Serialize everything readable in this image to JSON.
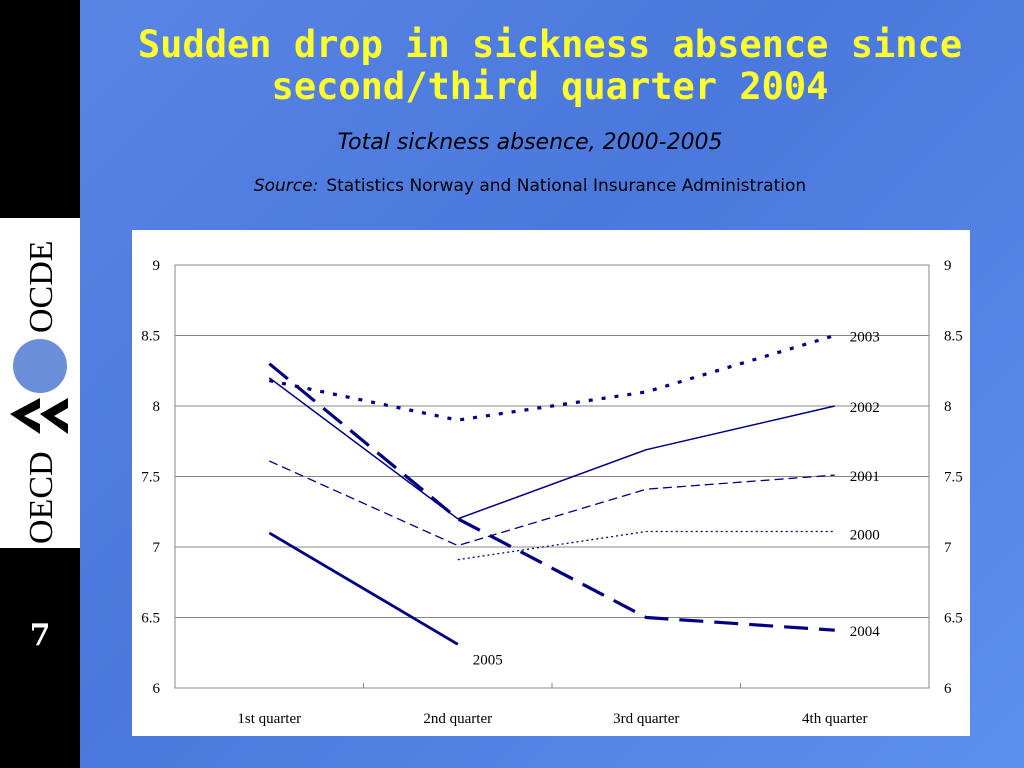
{
  "slide": {
    "title_line1": "Sudden drop in sickness absence since",
    "title_line2": "second/third quarter 2004",
    "subtitle": "Total sickness absence, 2000-2005",
    "source_label": "Source:",
    "source_text": "Statistics Norway and National Insurance Administration",
    "number": "7",
    "logo": {
      "text_top": "OCDE",
      "text_bottom": "OECD",
      "circle_color": "#6b8fd8"
    },
    "colors": {
      "background": "#5a86e6",
      "title": "#ffff2e",
      "series": "#000080"
    }
  },
  "chart_data": {
    "type": "line",
    "categories": [
      "1st quarter",
      "2nd quarter",
      "3rd quarter",
      "4th quarter"
    ],
    "ylim": [
      6,
      9
    ],
    "yticks": [
      "6",
      "6.5",
      "7",
      "7.5",
      "8",
      "8.5",
      "9"
    ],
    "secondary_axis": true,
    "grid": true,
    "legend": "end-labels",
    "series": [
      {
        "name": "2000",
        "values": [
          null,
          6.91,
          7.11,
          7.11
        ],
        "style": "dotted-thin"
      },
      {
        "name": "2001",
        "values": [
          7.61,
          7.01,
          7.41,
          7.51
        ],
        "style": "dashed-thin"
      },
      {
        "name": "2002",
        "values": [
          8.2,
          7.2,
          7.69,
          8.0
        ],
        "style": "solid-thin"
      },
      {
        "name": "2003",
        "values": [
          8.18,
          7.9,
          8.1,
          8.5
        ],
        "style": "dotted-thick"
      },
      {
        "name": "2004",
        "values": [
          8.3,
          7.2,
          6.5,
          6.41
        ],
        "style": "dashed-thick"
      },
      {
        "name": "2005",
        "values": [
          7.1,
          6.31,
          null,
          null
        ],
        "style": "solid-medium"
      }
    ]
  }
}
